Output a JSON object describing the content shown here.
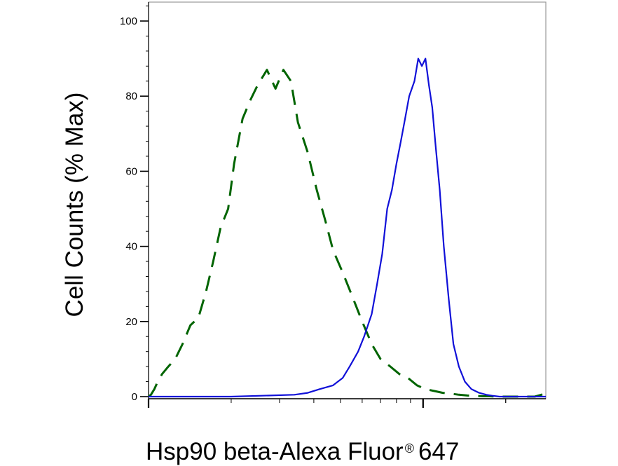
{
  "chart_data": {
    "type": "line",
    "title": "",
    "xlabel": "Hsp90 beta-Alexa Fluor",
    "xlabel_sup": "®",
    "xlabel_suffix": "647",
    "ylabel": "Cell Counts (% Max)",
    "xscale": "log",
    "xlim": [
      1,
      28
    ],
    "ylim": [
      0,
      105
    ],
    "yticks": [
      0,
      20,
      40,
      60,
      80,
      100
    ],
    "ytick_labels": [
      "0",
      "20",
      "40",
      "60",
      "80",
      "100"
    ],
    "xtick_labels": [],
    "grid": false,
    "legend": "none",
    "colors": {
      "dashed": "#006400",
      "solid": "#1010d8"
    },
    "series": [
      {
        "style": "dashed",
        "color": "#006400",
        "x": [
          1.0,
          1.02,
          1.05,
          1.08,
          1.12,
          1.18,
          1.25,
          1.33,
          1.42,
          1.52,
          1.62,
          1.72,
          1.83,
          1.95,
          2.05,
          2.2,
          2.35,
          2.5,
          2.7,
          2.9,
          3.1,
          3.3,
          3.5,
          3.8,
          4.1,
          4.4,
          4.7,
          5.1,
          5.5,
          6.0,
          6.5,
          7.0,
          7.6,
          8.2,
          8.8,
          9.5,
          10.2,
          11.0,
          11.8,
          12.6,
          13.5,
          14.5,
          15.5,
          16.5,
          17.5,
          18.5,
          19.5,
          21.0,
          22.5,
          24.0,
          25.5,
          27.0,
          28.0
        ],
        "y": [
          0,
          0.5,
          2,
          4,
          6,
          8,
          10,
          14,
          19,
          21,
          28,
          36,
          45,
          50,
          62,
          74,
          79,
          83,
          87,
          82,
          87,
          84,
          73,
          65,
          55,
          47,
          39,
          33,
          27,
          20,
          14,
          10,
          8,
          6,
          5,
          3,
          2,
          1.5,
          1,
          0.8,
          0.5,
          0.3,
          0.2,
          0.1,
          0.1,
          0,
          0,
          0,
          0,
          0,
          0,
          0.5,
          1
        ]
      },
      {
        "style": "solid",
        "color": "#1010d8",
        "x": [
          1.0,
          2.0,
          3.4,
          3.8,
          4.2,
          4.7,
          5.1,
          5.4,
          5.8,
          6.1,
          6.5,
          6.8,
          7.1,
          7.4,
          7.7,
          8.0,
          8.3,
          8.6,
          8.9,
          9.3,
          9.6,
          9.9,
          10.2,
          10.5,
          10.8,
          11.1,
          11.5,
          11.9,
          12.4,
          12.9,
          13.5,
          14.2,
          15.0,
          16.0,
          17.0,
          18.0,
          19.0,
          20.5,
          22.0,
          23.5,
          25.0,
          26.5,
          28.0
        ],
        "y": [
          0,
          0,
          0.5,
          1,
          2,
          3,
          5,
          8,
          12,
          16,
          22,
          30,
          38,
          50,
          55,
          62,
          68,
          74,
          80,
          84,
          90,
          88,
          90,
          83,
          77,
          67,
          55,
          40,
          26,
          14,
          8,
          4,
          2,
          1,
          0.5,
          0.2,
          0,
          0,
          0,
          0,
          0,
          0,
          0
        ]
      }
    ]
  }
}
